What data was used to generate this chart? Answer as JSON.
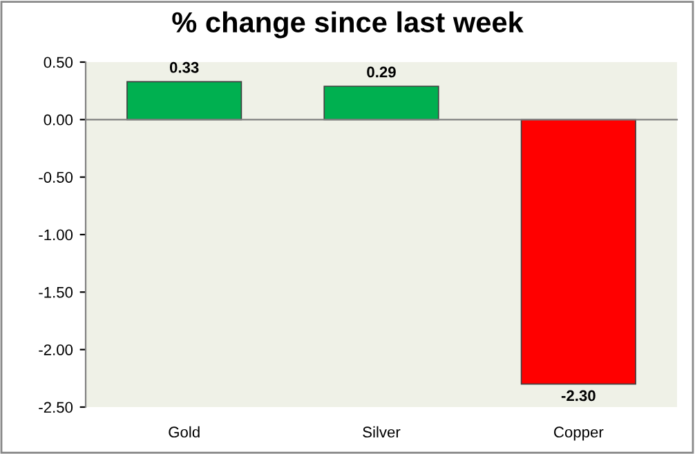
{
  "chart_data": {
    "type": "bar",
    "title": "% change since last week",
    "categories": [
      "Gold",
      "Silver",
      "Copper"
    ],
    "values": [
      0.33,
      0.29,
      -2.3
    ],
    "colors": [
      "#00b050",
      "#00b050",
      "#ff0000"
    ],
    "value_labels": [
      "0.33",
      "0.29",
      "-2.30"
    ],
    "ylim": [
      -2.5,
      0.5
    ],
    "yticks": [
      {
        "value": 0.5,
        "label": "0.50"
      },
      {
        "value": 0.0,
        "label": "0.00"
      },
      {
        "value": -0.5,
        "label": "-0.50"
      },
      {
        "value": -1.0,
        "label": "-1.00"
      },
      {
        "value": -1.5,
        "label": "-1.50"
      },
      {
        "value": -2.0,
        "label": "-2.00"
      },
      {
        "value": -2.5,
        "label": "-2.50"
      }
    ],
    "legend": false
  }
}
